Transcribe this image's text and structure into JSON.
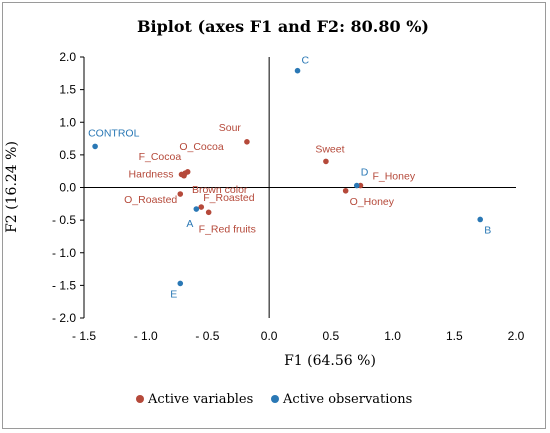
{
  "chart_data": {
    "type": "scatter",
    "title": "Biplot (axes F1 and F2: 80.80 %)",
    "xlabel": "F1 (64.56 %)",
    "ylabel": "F2 (16.24 %)",
    "xlim": [
      -1.5,
      2.0
    ],
    "ylim": [
      -2.0,
      2.0
    ],
    "x_ticks": [
      "- 1.5",
      "- 1.0",
      "- 0.5",
      "0.0",
      "0.5",
      "1.0",
      "1.5",
      "2.0"
    ],
    "x_tick_values": [
      -1.5,
      -1.0,
      -0.5,
      0.0,
      0.5,
      1.0,
      1.5,
      2.0
    ],
    "y_ticks": [
      "2.0",
      "1.5",
      "1.0",
      "0.5",
      "0.0",
      "- 0.5",
      "- 1.0",
      "- 1.5",
      "- 2.0"
    ],
    "y_tick_values": [
      2.0,
      1.5,
      1.0,
      0.5,
      0.0,
      -0.5,
      -1.0,
      -1.5,
      -2.0
    ],
    "series": [
      {
        "name": "Active variables",
        "color": "#b5493a",
        "points": [
          {
            "label": "Sour",
            "x": -0.18,
            "y": 0.7
          },
          {
            "label": "Sweet",
            "x": 0.46,
            "y": 0.4
          },
          {
            "label": "F_Honey",
            "x": 0.74,
            "y": 0.03
          },
          {
            "label": "O_Honey",
            "x": 0.62,
            "y": -0.05
          },
          {
            "label": "F_Cocoa",
            "x": -0.68,
            "y": 0.22
          },
          {
            "label": "O_Cocoa",
            "x": -0.66,
            "y": 0.24
          },
          {
            "label": "Hardness",
            "x": -0.71,
            "y": 0.2
          },
          {
            "label": "Brown color",
            "x": -0.69,
            "y": 0.18
          },
          {
            "label": "O_Roasted",
            "x": -0.72,
            "y": -0.1
          },
          {
            "label": "F_Roasted",
            "x": -0.55,
            "y": -0.3
          },
          {
            "label": "F_Red fruits",
            "x": -0.49,
            "y": -0.38
          }
        ]
      },
      {
        "name": "Active observations",
        "color": "#2a78b5",
        "points": [
          {
            "label": "C",
            "x": 0.23,
            "y": 1.79
          },
          {
            "label": "CONTROL",
            "x": -1.41,
            "y": 0.63
          },
          {
            "label": "D",
            "x": 0.71,
            "y": 0.03
          },
          {
            "label": "A",
            "x": -0.59,
            "y": -0.33
          },
          {
            "label": "B",
            "x": 1.71,
            "y": -0.49
          },
          {
            "label": "E",
            "x": -0.72,
            "y": -1.47
          }
        ]
      }
    ],
    "legend_position": "bottom",
    "grid": false
  }
}
